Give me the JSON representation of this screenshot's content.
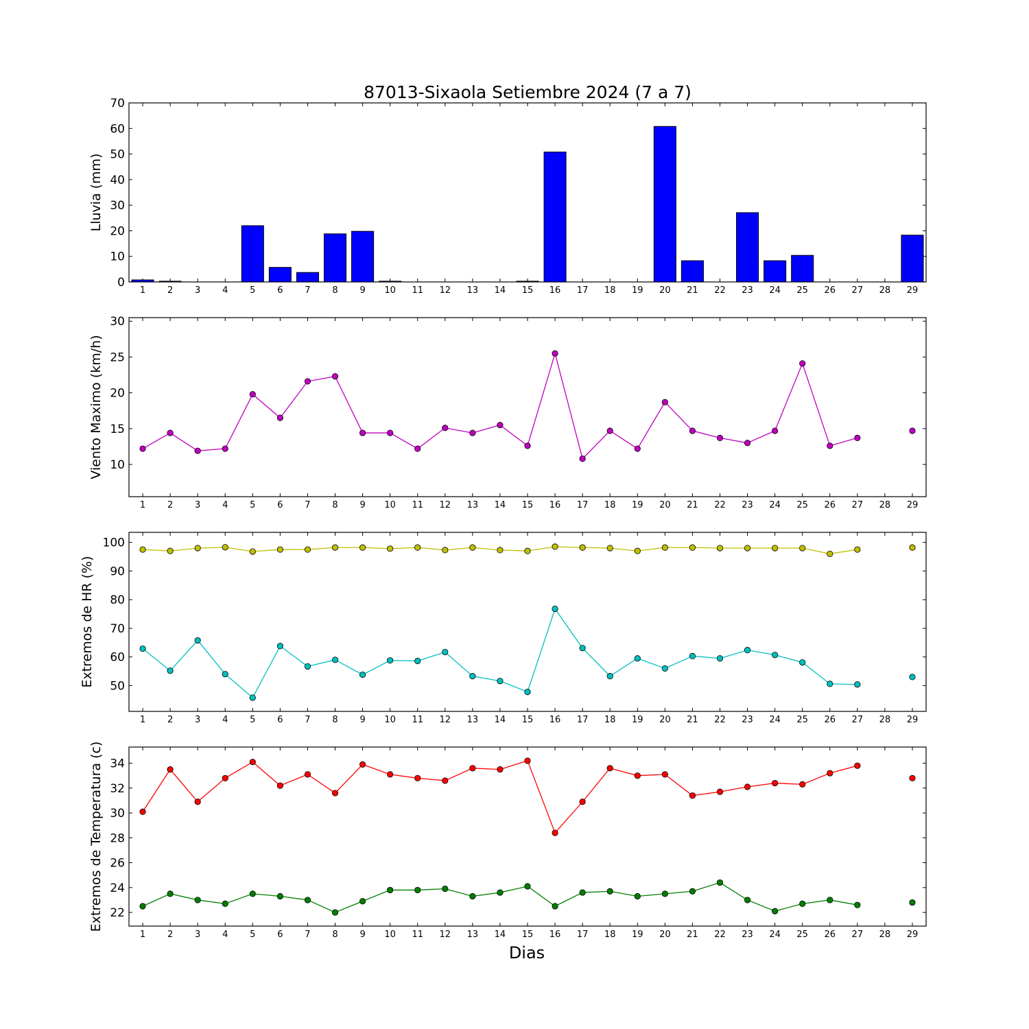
{
  "chart_data": [
    {
      "type": "bar",
      "title": "87013-Sixaola Setiembre 2024  (7 a 7)",
      "ylabel": "Lluvia (mm)",
      "xlabel": "",
      "ylim": [
        0,
        70
      ],
      "yticks": [
        0,
        10,
        20,
        30,
        40,
        50,
        60,
        70
      ],
      "xlim": [
        0.5,
        29.5
      ],
      "categories": [
        1,
        2,
        3,
        4,
        5,
        6,
        7,
        8,
        9,
        10,
        11,
        12,
        13,
        14,
        15,
        16,
        17,
        18,
        19,
        20,
        21,
        22,
        23,
        24,
        25,
        26,
        27,
        28,
        29
      ],
      "values": [
        0.8,
        0.3,
        0,
        0,
        22,
        5.7,
        3.7,
        18.8,
        19.8,
        0.3,
        0,
        0,
        0,
        0,
        0.3,
        50.8,
        0,
        0,
        0,
        60.8,
        8.3,
        0,
        27.1,
        8.3,
        10.4,
        0,
        0,
        null,
        18.3
      ],
      "color": "#0000ff"
    },
    {
      "type": "line",
      "ylabel": "Viento Maximo (km/h)",
      "ylim": [
        5.5,
        30.5
      ],
      "yticks": [
        10,
        15,
        20,
        25,
        30
      ],
      "xlim": [
        0.5,
        29.5
      ],
      "x": [
        1,
        2,
        3,
        4,
        5,
        6,
        7,
        8,
        9,
        10,
        11,
        12,
        13,
        14,
        15,
        16,
        17,
        18,
        19,
        20,
        21,
        22,
        23,
        24,
        25,
        26,
        27,
        28,
        29
      ],
      "series": [
        {
          "values": [
            12.2,
            14.4,
            11.9,
            12.2,
            19.8,
            16.5,
            21.6,
            22.3,
            14.4,
            14.4,
            12.2,
            15.1,
            14.4,
            15.5,
            12.6,
            25.5,
            10.8,
            14.7,
            12.2,
            18.7,
            14.7,
            13.7,
            13.0,
            14.7,
            24.1,
            12.6,
            13.7,
            null,
            14.7
          ],
          "color": "#bf00bf"
        }
      ]
    },
    {
      "type": "line",
      "ylabel": "Extremos de HR (%)",
      "ylim": [
        41,
        103.5
      ],
      "yticks": [
        50,
        60,
        70,
        80,
        90,
        100
      ],
      "xlim": [
        0.5,
        29.5
      ],
      "x": [
        1,
        2,
        3,
        4,
        5,
        6,
        7,
        8,
        9,
        10,
        11,
        12,
        13,
        14,
        15,
        16,
        17,
        18,
        19,
        20,
        21,
        22,
        23,
        24,
        25,
        26,
        27,
        28,
        29
      ],
      "series": [
        {
          "values": [
            97.5,
            97.0,
            98.0,
            98.3,
            96.8,
            97.5,
            97.5,
            98.2,
            98.2,
            97.8,
            98.2,
            97.3,
            98.2,
            97.3,
            97.0,
            98.5,
            98.2,
            98.0,
            97.0,
            98.2,
            98.2,
            98.0,
            98.0,
            98.0,
            98.0,
            96.0,
            97.5,
            null,
            98.2
          ],
          "color": "#bfbf00"
        },
        {
          "values": [
            62.9,
            55.2,
            65.8,
            54.0,
            45.8,
            63.8,
            56.7,
            59.0,
            53.8,
            58.8,
            58.6,
            61.7,
            53.3,
            51.6,
            47.8,
            76.8,
            63.1,
            53.3,
            59.5,
            56.0,
            60.3,
            59.5,
            62.4,
            60.7,
            58.1,
            50.6,
            50.4,
            null,
            53.0
          ],
          "color": "#00bfbf"
        }
      ]
    },
    {
      "type": "line",
      "ylabel": "Extremos de Temperatura (c)",
      "xlabel": "Dias",
      "ylim": [
        20.9,
        35.3
      ],
      "yticks": [
        22,
        24,
        26,
        28,
        30,
        32,
        34
      ],
      "xlim": [
        0.5,
        29.5
      ],
      "x": [
        1,
        2,
        3,
        4,
        5,
        6,
        7,
        8,
        9,
        10,
        11,
        12,
        13,
        14,
        15,
        16,
        17,
        18,
        19,
        20,
        21,
        22,
        23,
        24,
        25,
        26,
        27,
        28,
        29
      ],
      "series": [
        {
          "values": [
            30.1,
            33.5,
            30.9,
            32.8,
            34.1,
            32.2,
            33.1,
            31.6,
            33.9,
            33.1,
            32.8,
            32.6,
            33.6,
            33.5,
            34.2,
            28.4,
            30.9,
            33.6,
            33.0,
            33.1,
            31.4,
            31.7,
            32.1,
            32.4,
            32.3,
            33.2,
            33.8,
            null,
            32.8
          ],
          "color": "#ff0000"
        },
        {
          "values": [
            22.5,
            23.5,
            23.0,
            22.7,
            23.5,
            23.3,
            23.0,
            22.0,
            22.9,
            23.8,
            23.8,
            23.9,
            23.3,
            23.6,
            24.1,
            22.5,
            23.6,
            23.7,
            23.3,
            23.5,
            23.7,
            24.4,
            23.0,
            22.1,
            22.7,
            23.0,
            22.6,
            null,
            22.8
          ],
          "color": "#007f00"
        }
      ]
    }
  ]
}
